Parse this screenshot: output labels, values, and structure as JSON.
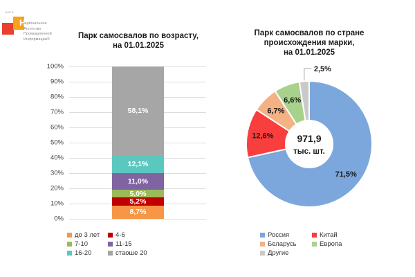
{
  "logo": {
    "brand_small": "НАПИ",
    "drop_cap": "Н",
    "line1_rest": "ациональное",
    "line2": "Агентство",
    "line3": "Промышленной",
    "line4": "Информации®",
    "red": "#E8402C",
    "orange": "#F9A11B"
  },
  "chart_data": [
    {
      "type": "bar",
      "stacked": true,
      "title": "Парк самосвалов по возрасту, на 01.01.2025",
      "title_lines": [
        "Парк самосвалов по возрасту,",
        "на 01.01.2025"
      ],
      "ylabel": "%",
      "ylim": [
        0,
        100
      ],
      "ytick_step": 10,
      "ytick_suffix": "%",
      "grid": true,
      "legend_position": "bottom",
      "categories": [
        "до 3 лет",
        "4-6",
        "7-10",
        "11-15",
        "16-20",
        "стаоше 20"
      ],
      "values": [
        8.7,
        5.2,
        5.0,
        11.0,
        12.1,
        58.1
      ],
      "segments": [
        {
          "label": "до 3 лет",
          "value": 8.7,
          "display": "8,7%",
          "color": "#F79646"
        },
        {
          "label": "4-6",
          "value": 5.2,
          "display": "5,2%",
          "color": "#C00000"
        },
        {
          "label": "7-10",
          "value": 5.0,
          "display": "5,0%",
          "color": "#9BBB59"
        },
        {
          "label": "11-15",
          "value": 11.0,
          "display": "11,0%",
          "color": "#8064A2"
        },
        {
          "label": "16-20",
          "value": 12.1,
          "display": "12,1%",
          "color": "#5BC8C0"
        },
        {
          "label": "стаоше 20",
          "value": 58.1,
          "display": "58,1%",
          "color": "#A6A6A6"
        }
      ]
    },
    {
      "type": "pie",
      "donut": true,
      "title": "Парк самосвалов по стране происхождения марки, на 01.01.2025",
      "title_lines": [
        "Парк самосвалов по стране происхождения марки,",
        "на 01.01.2025"
      ],
      "center_value": "971,9",
      "center_unit": "тыс. шт.",
      "legend_position": "bottom",
      "slices": [
        {
          "label": "Россия",
          "value": 71.5,
          "display": "71,5%",
          "color": "#7CA7DC"
        },
        {
          "label": "Китай",
          "value": 12.6,
          "display": "12,6%",
          "color": "#F93E3E"
        },
        {
          "label": "Беларусь",
          "value": 6.7,
          "display": "6,7%",
          "color": "#F4B183"
        },
        {
          "label": "Европа",
          "value": 6.6,
          "display": "6,6%",
          "color": "#A9D18E"
        },
        {
          "label": "Другие",
          "value": 2.5,
          "display": "2,5%",
          "color": "#C9C9C9"
        }
      ]
    }
  ]
}
